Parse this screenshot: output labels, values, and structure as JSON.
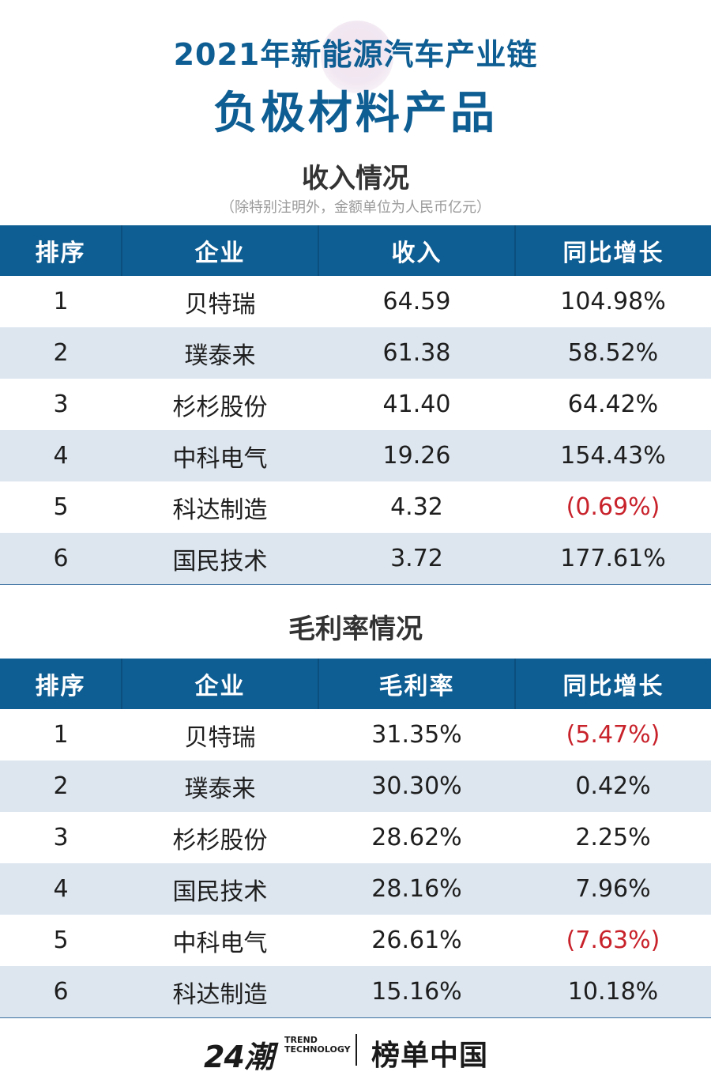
{
  "header": {
    "title_line1": "2021年新能源汽车产业链",
    "title_line2": "负极材料产品"
  },
  "revenue": {
    "title": "收入情况",
    "note": "（除特别注明外，金额单位为人民币亿元）",
    "columns": [
      "排序",
      "企业",
      "收入",
      "同比增长"
    ],
    "rows": [
      {
        "rank": "1",
        "company": "贝特瑞",
        "value": "64.59",
        "growth": "104.98%",
        "negative": false
      },
      {
        "rank": "2",
        "company": "璞泰来",
        "value": "61.38",
        "growth": "58.52%",
        "negative": false
      },
      {
        "rank": "3",
        "company": "杉杉股份",
        "value": "41.40",
        "growth": "64.42%",
        "negative": false
      },
      {
        "rank": "4",
        "company": "中科电气",
        "value": "19.26",
        "growth": "154.43%",
        "negative": false
      },
      {
        "rank": "5",
        "company": "科达制造",
        "value": "4.32",
        "growth": "(0.69%)",
        "negative": true
      },
      {
        "rank": "6",
        "company": "国民技术",
        "value": "3.72",
        "growth": "177.61%",
        "negative": false
      }
    ]
  },
  "margin": {
    "title": "毛利率情况",
    "columns": [
      "排序",
      "企业",
      "毛利率",
      "同比增长"
    ],
    "rows": [
      {
        "rank": "1",
        "company": "贝特瑞",
        "value": "31.35%",
        "growth": "(5.47%)",
        "negative": true
      },
      {
        "rank": "2",
        "company": "璞泰来",
        "value": "30.30%",
        "growth": "0.42%",
        "negative": false
      },
      {
        "rank": "3",
        "company": "杉杉股份",
        "value": "28.62%",
        "growth": "2.25%",
        "negative": false
      },
      {
        "rank": "4",
        "company": "国民技术",
        "value": "28.16%",
        "growth": "7.96%",
        "negative": false
      },
      {
        "rank": "5",
        "company": "中科电气",
        "value": "26.61%",
        "growth": "(7.63%)",
        "negative": true
      },
      {
        "rank": "6",
        "company": "科达制造",
        "value": "15.16%",
        "growth": "10.18%",
        "negative": false
      }
    ]
  },
  "footer": {
    "logo_24": "24潮",
    "trend_line1": "TREND",
    "trend_line2": "TECHNOLOGY",
    "brand": "榜单中国"
  },
  "colors": {
    "title_blue": "#0f5e93",
    "header_blue": "#0f5e93",
    "stripe": "#dde6ef",
    "negative_red": "#c8222b"
  }
}
